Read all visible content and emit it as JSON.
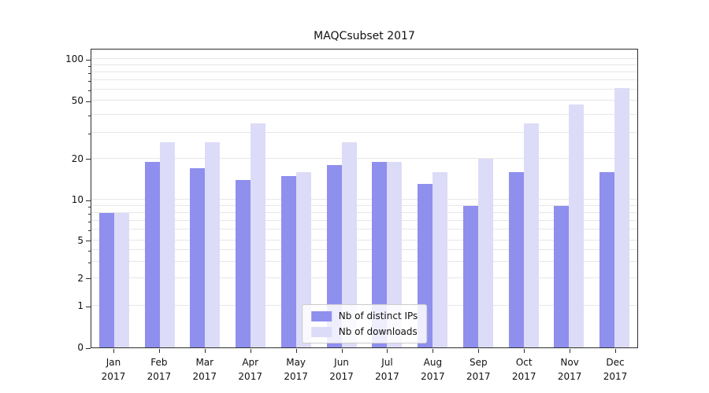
{
  "chart_data": {
    "type": "bar",
    "title": "MAQCsubset 2017",
    "xlabel": "",
    "ylabel": "",
    "yscale": "symlog (linear 0-1, logarithmic above 1)",
    "yticks": [
      0,
      1,
      2,
      5,
      10,
      20,
      50,
      100
    ],
    "ylim": [
      0,
      110
    ],
    "grid": "horizontal minor log gridlines",
    "legend_position": "bottom center inside plot",
    "categories": [
      {
        "month": "Jan",
        "year": "2017"
      },
      {
        "month": "Feb",
        "year": "2017"
      },
      {
        "month": "Mar",
        "year": "2017"
      },
      {
        "month": "Apr",
        "year": "2017"
      },
      {
        "month": "May",
        "year": "2017"
      },
      {
        "month": "Jun",
        "year": "2017"
      },
      {
        "month": "Jul",
        "year": "2017"
      },
      {
        "month": "Aug",
        "year": "2017"
      },
      {
        "month": "Sep",
        "year": "2017"
      },
      {
        "month": "Oct",
        "year": "2017"
      },
      {
        "month": "Nov",
        "year": "2017"
      },
      {
        "month": "Dec",
        "year": "2017"
      }
    ],
    "series": [
      {
        "name": "Nb of distinct IPs",
        "color": "#8f8fee",
        "values": [
          8,
          19,
          17,
          14,
          15,
          18,
          19,
          13,
          9,
          16,
          9,
          16
        ]
      },
      {
        "name": "Nb of downloads",
        "color": "#dcdcf8",
        "values": [
          8,
          26,
          26,
          35,
          16,
          26,
          19,
          16,
          20,
          35,
          47,
          62
        ]
      }
    ]
  }
}
